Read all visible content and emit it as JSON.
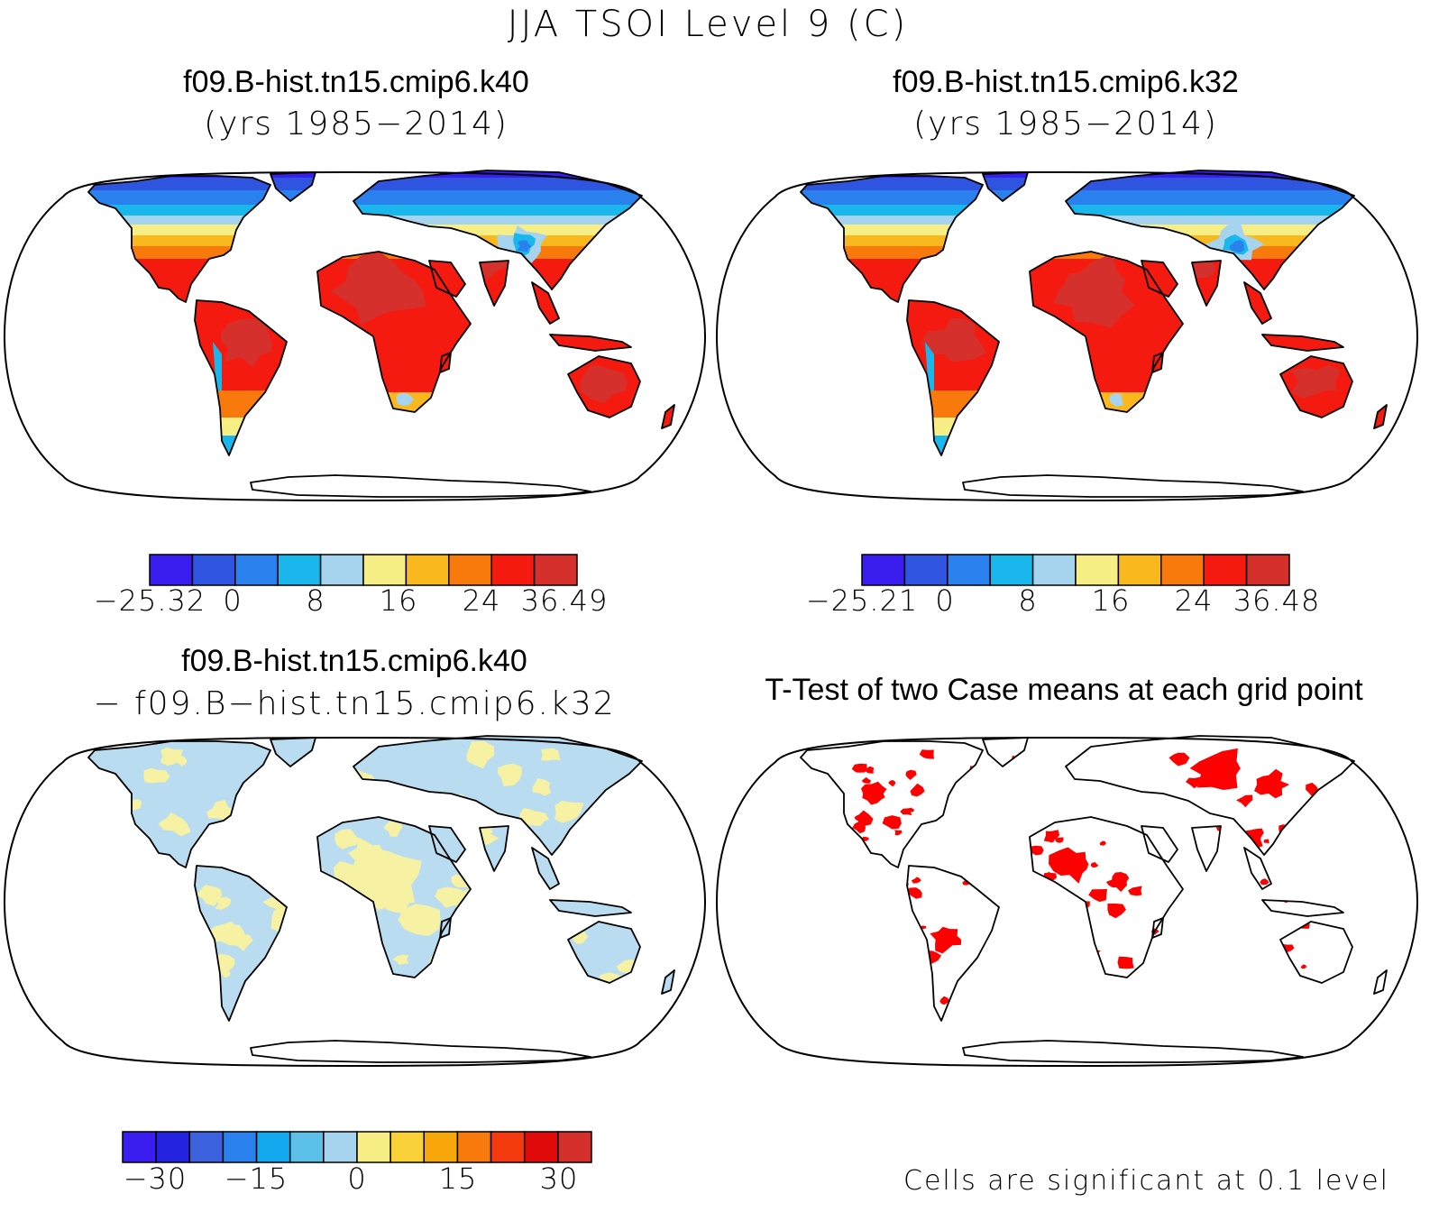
{
  "figure": {
    "suptitle": "JJA TSOI Level 9 (C)"
  },
  "panels": {
    "top_left": {
      "title": "f09.B-hist.tn15.cmip6.k40",
      "subtitle": "(yrs 1985−2014)"
    },
    "top_right": {
      "title": "f09.B-hist.tn15.cmip6.k32",
      "subtitle": "(yrs 1985−2014)"
    },
    "bottom_left": {
      "title": "f09.B-hist.tn15.cmip6.k40",
      "subtitle": "− f09.B−hist.tn15.cmip6.k32"
    },
    "bottom_right": {
      "title": "T-Test of two Case means at each grid point",
      "note": "Cells are significant at 0.1 level"
    }
  },
  "colorbars": {
    "k40": {
      "colors": [
        "#3a1ef0",
        "#2f55e0",
        "#2a80ec",
        "#19b7ec",
        "#a6d4ee",
        "#f7ef86",
        "#f9b81e",
        "#f97a0c",
        "#f51a10",
        "#d5302c"
      ],
      "tick_labels": [
        "−25.32",
        "0",
        "8",
        "16",
        "24",
        "36.49"
      ]
    },
    "k32": {
      "colors": [
        "#3a1ef0",
        "#2f55e0",
        "#2a80ec",
        "#19b7ec",
        "#a6d4ee",
        "#f7ef86",
        "#f9b81e",
        "#f97a0c",
        "#f51a10",
        "#d5302c"
      ],
      "tick_labels": [
        "−25.21",
        "0",
        "8",
        "16",
        "24",
        "36.48"
      ]
    },
    "diff": {
      "colors": [
        "#3a1ef0",
        "#2424e0",
        "#3c62e0",
        "#2a80ec",
        "#14a8ee",
        "#5cbfe8",
        "#a6d4ee",
        "#f7ef86",
        "#f9d23a",
        "#f9a80c",
        "#f97a0c",
        "#f53a10",
        "#e00a0a",
        "#d5302c"
      ],
      "tick_labels": [
        "−30",
        "−15",
        "0",
        "15",
        "30"
      ]
    }
  },
  "fills": {
    "sig": "#ff0000",
    "diff_light_blue": "#b9dcf0",
    "diff_light_yellow": "#f7f1a3"
  }
}
